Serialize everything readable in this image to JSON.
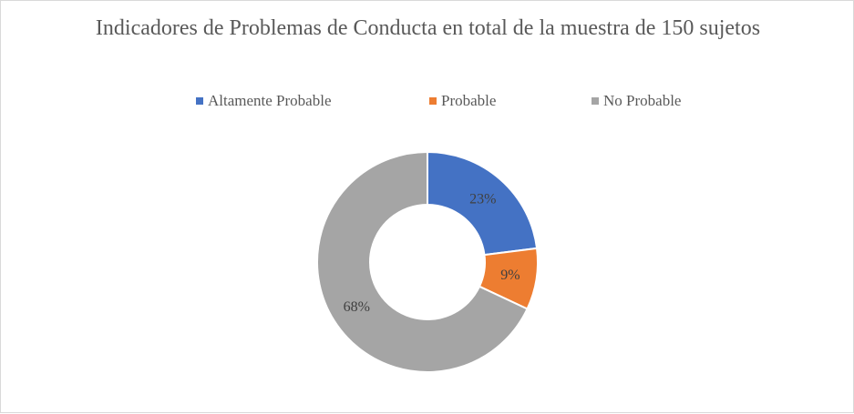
{
  "chart_data": {
    "type": "pie",
    "variant": "doughnut",
    "title": "Indicadores de Problemas de Conducta en total de la muestra de 150 sujetos",
    "categories": [
      "Altamente Probable",
      "Probable",
      "No Probable"
    ],
    "values": [
      23,
      9,
      68
    ],
    "labels": [
      "23%",
      "9%",
      "68%"
    ],
    "colors": [
      "#4472c4",
      "#ed7d31",
      "#a5a5a5"
    ],
    "legend_position": "top"
  }
}
